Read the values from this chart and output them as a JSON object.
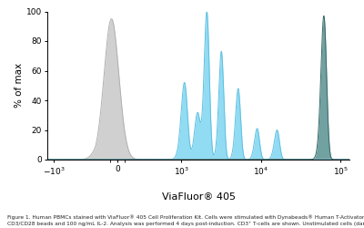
{
  "ylabel": "% of max",
  "xlabel": "ViaFluor® 405",
  "figure_caption_line1": "Figure 1. Human PBMCs stained with ViaFluor® 405 Cell Proliferation Kit. Cells were stimulated with Dynabeads® Human T-Activator",
  "figure_caption_line2": "CD3/CD28 beads and 100 ng/mL IL-2. Analysis was performed 4 days post-induction. CD3⁺ T-cells are shown. Unstimulated cells (dark",
  "background_color": "#ffffff",
  "gray_fill": "#d0d0d0",
  "gray_edge": "#b0b0b0",
  "blue_fill": "#85d8f2",
  "blue_edge": "#60c0e0",
  "teal_fill": "#4d8a88",
  "teal_edge": "#356866",
  "ylim": [
    0,
    100
  ],
  "yticks": [
    0,
    20,
    40,
    60,
    80,
    100
  ],
  "linthresh": 300,
  "linscale": 0.25
}
